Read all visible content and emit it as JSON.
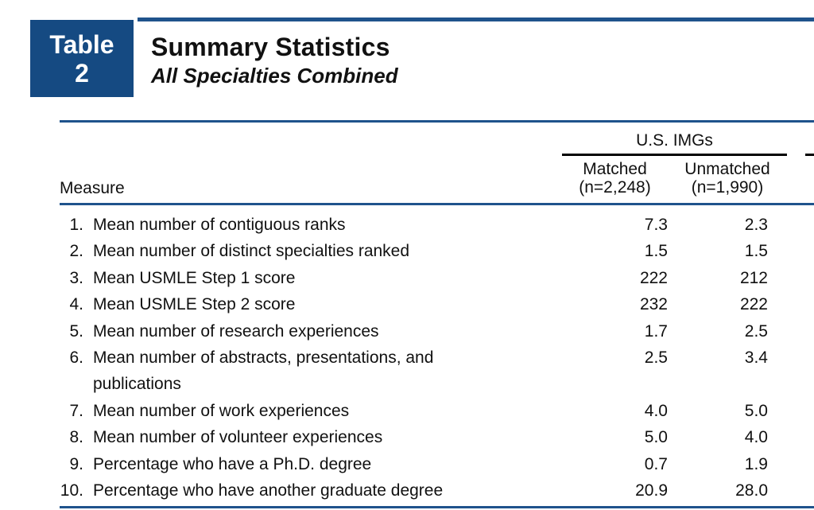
{
  "colors": {
    "navy": "#154A82",
    "rule_blue": "#1F538C",
    "spanner_black": "#000000"
  },
  "badge": {
    "word": "Table",
    "number": "2"
  },
  "header": {
    "title": "Summary Statistics",
    "subtitle": "All Specialties Combined"
  },
  "table": {
    "measure_header": "Measure",
    "group_header": "U.S. IMGs",
    "columns": [
      {
        "label": "Matched",
        "sub": "(n=2,248)"
      },
      {
        "label": "Unmatched",
        "sub": "(n=1,990)"
      }
    ],
    "rows": [
      {
        "num": "1.",
        "label": "Mean number of contiguous ranks",
        "matched": "7.3",
        "unmatched": "2.3"
      },
      {
        "num": "2.",
        "label": "Mean number of distinct specialties ranked",
        "matched": "1.5",
        "unmatched": "1.5"
      },
      {
        "num": "3.",
        "label": "Mean USMLE Step 1 score",
        "matched": "222",
        "unmatched": "212"
      },
      {
        "num": "4.",
        "label": "Mean USMLE Step 2 score",
        "matched": "232",
        "unmatched": "222"
      },
      {
        "num": "5.",
        "label": "Mean number of research experiences",
        "matched": "1.7",
        "unmatched": "2.5"
      },
      {
        "num": "6.",
        "label": "Mean number of abstracts, presentations, and publications",
        "matched": "2.5",
        "unmatched": "3.4"
      },
      {
        "num": "7.",
        "label": "Mean number of work experiences",
        "matched": "4.0",
        "unmatched": "5.0"
      },
      {
        "num": "8.",
        "label": "Mean number of volunteer experiences",
        "matched": "5.0",
        "unmatched": "4.0"
      },
      {
        "num": "9.",
        "label": "Percentage who have a Ph.D. degree",
        "matched": "0.7",
        "unmatched": "1.9"
      },
      {
        "num": "10.",
        "label": "Percentage who have another graduate degree",
        "matched": "20.9",
        "unmatched": "28.0"
      }
    ]
  }
}
